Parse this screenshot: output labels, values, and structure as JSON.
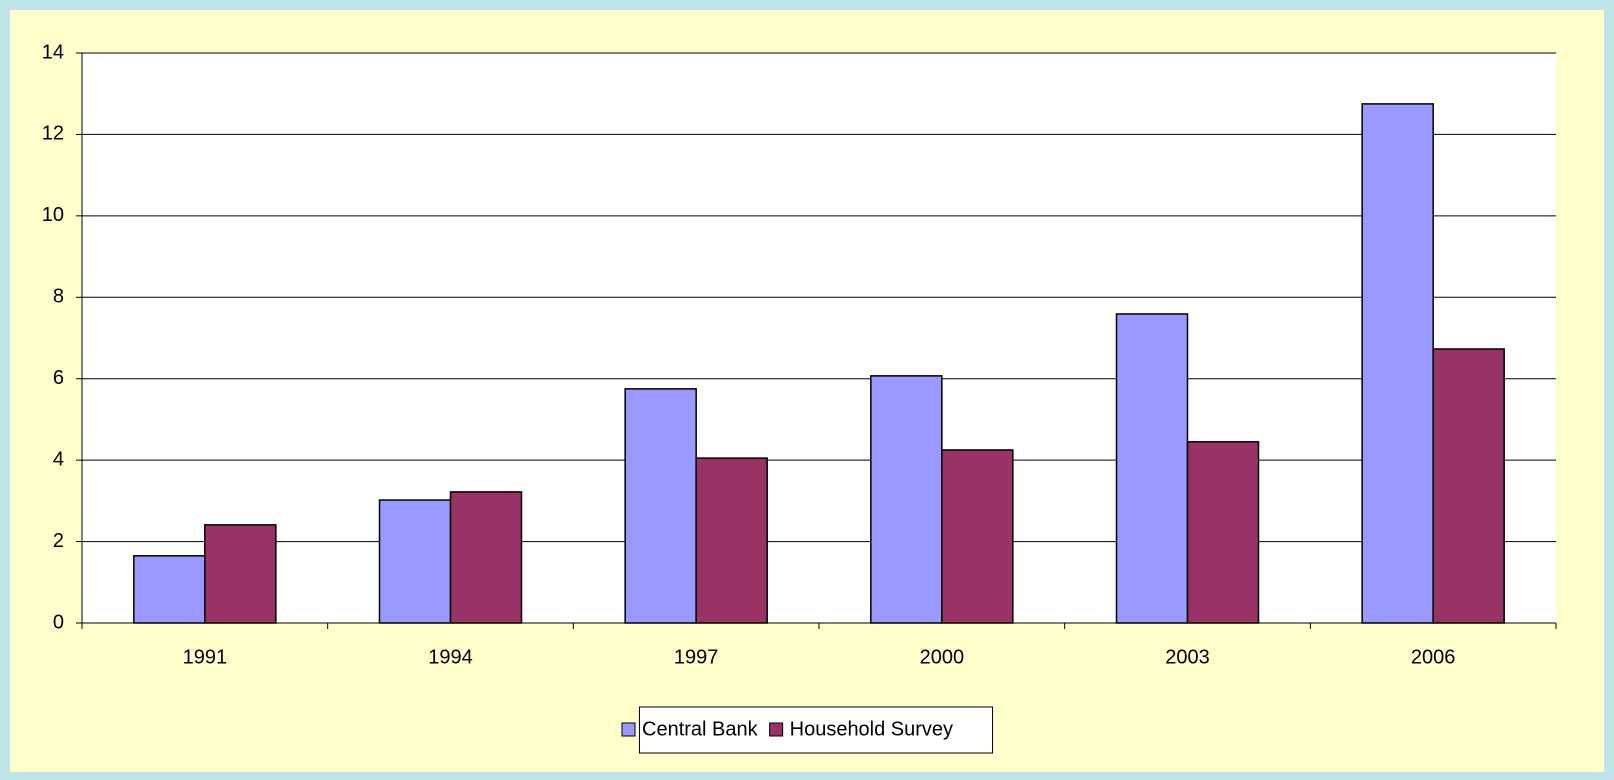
{
  "chart_data": {
    "type": "bar",
    "categories": [
      "1991",
      "1994",
      "1997",
      "2000",
      "2003",
      "2006"
    ],
    "series": [
      {
        "name": "Central Bank",
        "color": "#9999ff",
        "values": [
          1.65,
          3.02,
          5.75,
          6.07,
          7.59,
          12.75
        ]
      },
      {
        "name": "Household Survey",
        "color": "#993366",
        "values": [
          2.41,
          3.22,
          4.05,
          4.25,
          4.45,
          6.73
        ]
      }
    ],
    "ylim": [
      0,
      14
    ],
    "yticks": [
      0,
      2,
      4,
      6,
      8,
      10,
      12,
      14
    ],
    "grid": true,
    "legend": "bottom"
  }
}
